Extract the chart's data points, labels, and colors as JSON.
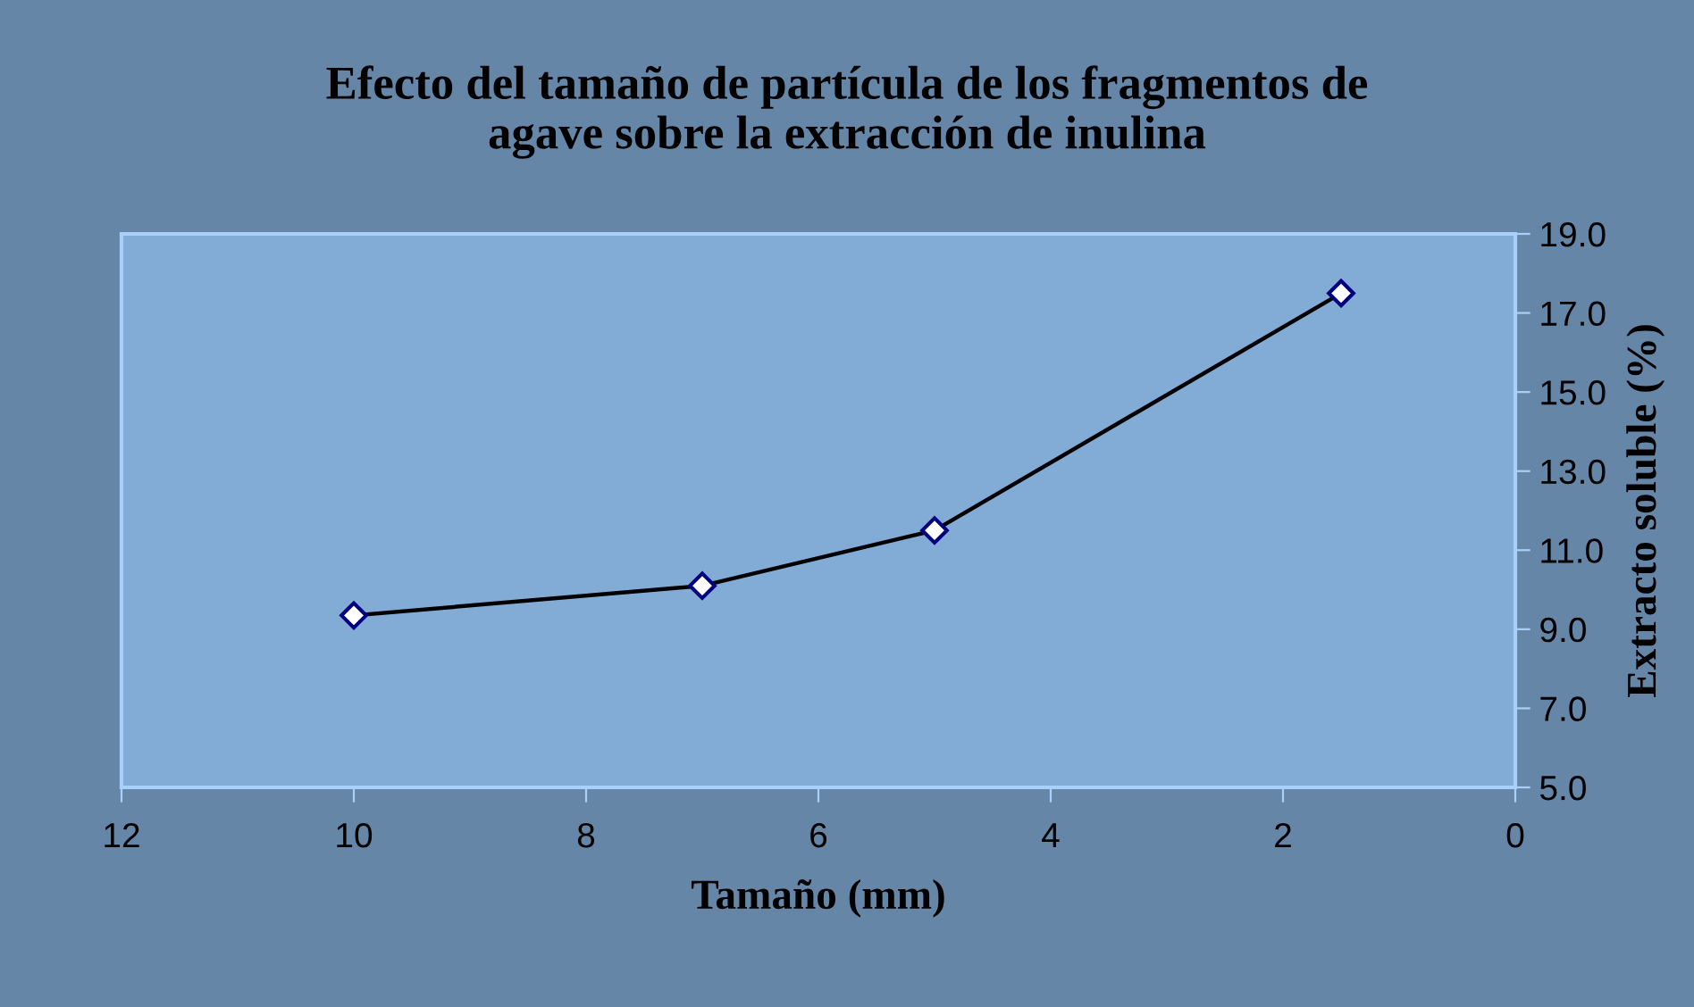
{
  "chart_data": {
    "type": "line",
    "title": "Efecto del tamaño de partícula de los fragmentos de\nagave sobre la extracción de inulina",
    "xlabel": "Tamaño (mm)",
    "ylabel": "Extracto soluble (%)",
    "x": [
      10,
      7,
      5,
      1.5
    ],
    "series": [
      {
        "color": "#000000",
        "values": [
          9.35,
          10.1,
          11.5,
          17.5
        ]
      }
    ],
    "xlim": [
      12,
      0
    ],
    "xticks": [
      12,
      10,
      8,
      6,
      4,
      2,
      0
    ],
    "ylim": [
      5.0,
      19.0
    ],
    "yticks": [
      {
        "value": 5,
        "label": "5.0"
      },
      {
        "value": 7,
        "label": "7.0"
      },
      {
        "value": 9,
        "label": "9.0"
      },
      {
        "value": 11,
        "label": "11.0"
      },
      {
        "value": 13,
        "label": "13.0"
      },
      {
        "value": 15,
        "label": "15.0"
      },
      {
        "value": 17,
        "label": "17.0"
      },
      {
        "value": 19,
        "label": "19.0"
      }
    ],
    "grid": false,
    "legend": false,
    "marker": "diamond",
    "line_style": "solid"
  }
}
